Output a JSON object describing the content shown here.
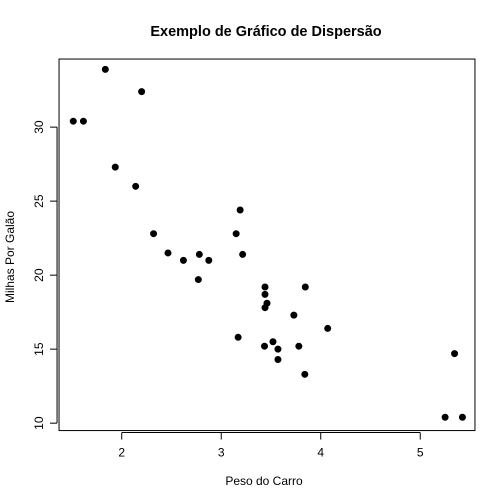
{
  "chart_data": {
    "type": "scatter",
    "title": "Exemplo de Gráfico de Dispersão",
    "xlabel": "Peso do Carro",
    "ylabel": "Milhas Por Galão",
    "xlim": [
      1.37,
      5.55
    ],
    "ylim": [
      9.5,
      34.6
    ],
    "xticks": [
      2,
      3,
      4,
      5
    ],
    "yticks": [
      10,
      15,
      20,
      25,
      30
    ],
    "grid": false,
    "point_color": "#000000",
    "points": [
      {
        "x": 2.62,
        "y": 21.0
      },
      {
        "x": 2.875,
        "y": 21.0
      },
      {
        "x": 2.32,
        "y": 22.8
      },
      {
        "x": 3.215,
        "y": 21.4
      },
      {
        "x": 3.44,
        "y": 18.7
      },
      {
        "x": 3.46,
        "y": 18.1
      },
      {
        "x": 3.57,
        "y": 14.3
      },
      {
        "x": 3.19,
        "y": 24.4
      },
      {
        "x": 3.15,
        "y": 22.8
      },
      {
        "x": 3.44,
        "y": 19.2
      },
      {
        "x": 3.44,
        "y": 17.8
      },
      {
        "x": 4.07,
        "y": 16.4
      },
      {
        "x": 3.73,
        "y": 17.3
      },
      {
        "x": 3.78,
        "y": 15.2
      },
      {
        "x": 5.25,
        "y": 10.4
      },
      {
        "x": 5.424,
        "y": 10.4
      },
      {
        "x": 5.345,
        "y": 14.7
      },
      {
        "x": 2.2,
        "y": 32.4
      },
      {
        "x": 1.615,
        "y": 30.4
      },
      {
        "x": 1.835,
        "y": 33.9
      },
      {
        "x": 2.465,
        "y": 21.5
      },
      {
        "x": 3.52,
        "y": 15.5
      },
      {
        "x": 3.435,
        "y": 15.2
      },
      {
        "x": 3.84,
        "y": 13.3
      },
      {
        "x": 3.845,
        "y": 19.2
      },
      {
        "x": 1.935,
        "y": 27.3
      },
      {
        "x": 2.14,
        "y": 26.0
      },
      {
        "x": 1.513,
        "y": 30.4
      },
      {
        "x": 3.17,
        "y": 15.8
      },
      {
        "x": 2.77,
        "y": 19.7
      },
      {
        "x": 3.57,
        "y": 15.0
      },
      {
        "x": 2.78,
        "y": 21.4
      }
    ]
  }
}
